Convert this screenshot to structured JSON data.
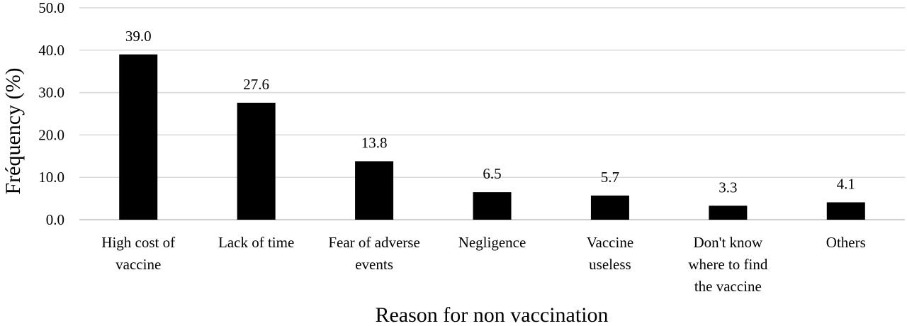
{
  "chart_data": {
    "type": "bar",
    "xlabel": "Reason for non vaccination",
    "ylabel": "Fréquency (%)",
    "ylim": [
      0,
      50
    ],
    "yticks": [
      "0.0",
      "10.0",
      "20.0",
      "30.0",
      "40.0",
      "50.0"
    ],
    "grid": true,
    "legend": "none",
    "categories": [
      [
        "High cost of",
        "vaccine"
      ],
      [
        "Lack of time"
      ],
      [
        "Fear of adverse",
        "events"
      ],
      [
        "Negligence"
      ],
      [
        "Vaccine",
        "useless"
      ],
      [
        "Don't know",
        "where to find",
        "the vaccine"
      ],
      [
        "Others"
      ]
    ],
    "values": [
      39.0,
      27.6,
      13.8,
      6.5,
      5.7,
      3.3,
      4.1
    ],
    "value_labels": [
      "39.0",
      "27.6",
      "13.8",
      "6.5",
      "5.7",
      "3.3",
      "4.1"
    ],
    "colors": {
      "bar": "#000000",
      "grid": "#d9d9d9",
      "axis": "#bfbfbf"
    }
  }
}
